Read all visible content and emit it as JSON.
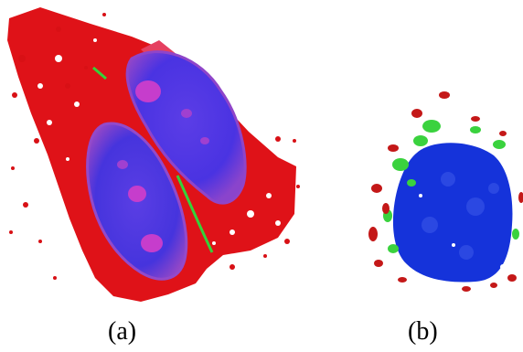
{
  "figure": {
    "panels": [
      {
        "id": "a",
        "label": "(a)"
      },
      {
        "id": "b",
        "label": "(b)"
      }
    ],
    "colors": {
      "cytoplasm_red": "#e0101a",
      "nucleus_blue": "#3b2ee0",
      "nucleus_purple": "#7a3fd4",
      "nucleolus_magenta": "#c437c8",
      "fiber_green": "#35d23a",
      "blue_b": "#1232d8",
      "background": "#ffffff"
    }
  }
}
